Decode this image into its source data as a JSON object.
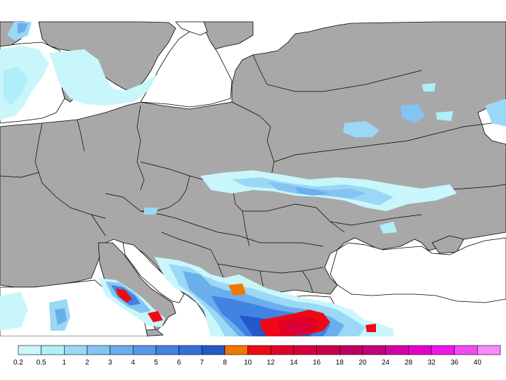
{
  "map": {
    "background_color": "#ffffff",
    "land_color": "#a8a8a8",
    "border_color": "#000000"
  },
  "legend": {
    "labels": [
      "0.2",
      "0.5",
      "1",
      "2",
      "3",
      "4",
      "5",
      "6",
      "7",
      "8",
      "10",
      "12",
      "14",
      "16",
      "18",
      "20",
      "24",
      "28",
      "32",
      "36",
      "40"
    ],
    "colors": [
      "#c8f6fb",
      "#b0eef8",
      "#9ad8f5",
      "#84c4f2",
      "#6aaeec",
      "#5698e8",
      "#4282e2",
      "#3270d8",
      "#2458c8",
      "#f07800",
      "#ee0a14",
      "#e00028",
      "#d8003c",
      "#c8004e",
      "#be0060",
      "#c4007c",
      "#d200a6",
      "#e400ca",
      "#ee18ea",
      "#f24cf4",
      "#f88af8"
    ]
  }
}
